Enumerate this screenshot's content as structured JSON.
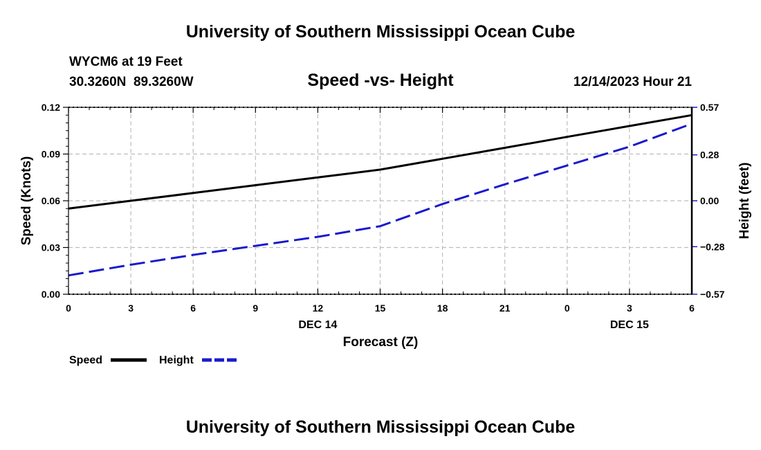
{
  "header": {
    "title": "University of Southern Mississippi Ocean Cube",
    "station": "WYCM6 at 19 Feet",
    "coords": "30.3260N  89.3260W",
    "datetime": "12/14/2023 Hour 21",
    "footer_title": "University of Southern Mississippi Ocean Cube"
  },
  "chart_data": {
    "type": "line",
    "title": "Speed -vs- Height",
    "xlabel": "Forecast (Z)",
    "ylabel": "Speed (Knots)",
    "y2label": "Height (feet)",
    "x": [
      0,
      3,
      6,
      9,
      12,
      15,
      18,
      21,
      24,
      27,
      30
    ],
    "x_tick_labels": [
      "0",
      "3",
      "6",
      "9",
      "12",
      "15",
      "18",
      "21",
      "0",
      "3",
      "6"
    ],
    "date_labels": [
      {
        "x": 12,
        "label": "DEC 14"
      },
      {
        "x": 27,
        "label": "DEC 15"
      }
    ],
    "xlim": [
      0,
      30
    ],
    "ylim": [
      0,
      0.12
    ],
    "y_ticks": [
      0,
      0.03,
      0.06,
      0.09,
      0.12
    ],
    "y_tick_labels": [
      "0.00",
      "0.03",
      "0.06",
      "0.09",
      "0.12"
    ],
    "y2lim": [
      -0.57,
      0.57
    ],
    "y2_ticks": [
      -0.57,
      -0.28,
      0,
      0.28,
      0.57
    ],
    "y2_tick_labels": [
      "−0.57",
      "−0.28",
      "0.00",
      "0.28",
      "0.57"
    ],
    "grid": true,
    "series": [
      {
        "name": "Speed",
        "axis": "left",
        "color": "#000000",
        "dash": "solid",
        "x": [
          0,
          3,
          6,
          9,
          12,
          15,
          18,
          21,
          24,
          27,
          30
        ],
        "values": [
          0.055,
          0.06,
          0.065,
          0.07,
          0.075,
          0.08,
          0.087,
          0.094,
          0.101,
          0.108,
          0.115
        ]
      },
      {
        "name": "Height",
        "axis": "right",
        "color": "#1a1acc",
        "dash": "dashed",
        "x": [
          0,
          3,
          6,
          9,
          12,
          15,
          18,
          21,
          24,
          27,
          30
        ],
        "values": [
          -0.455,
          -0.39,
          -0.33,
          -0.275,
          -0.22,
          -0.155,
          -0.02,
          0.1,
          0.215,
          0.33,
          0.47
        ]
      }
    ],
    "legend": {
      "position": "bottom-left",
      "entries": [
        "Speed",
        "Height"
      ]
    }
  }
}
